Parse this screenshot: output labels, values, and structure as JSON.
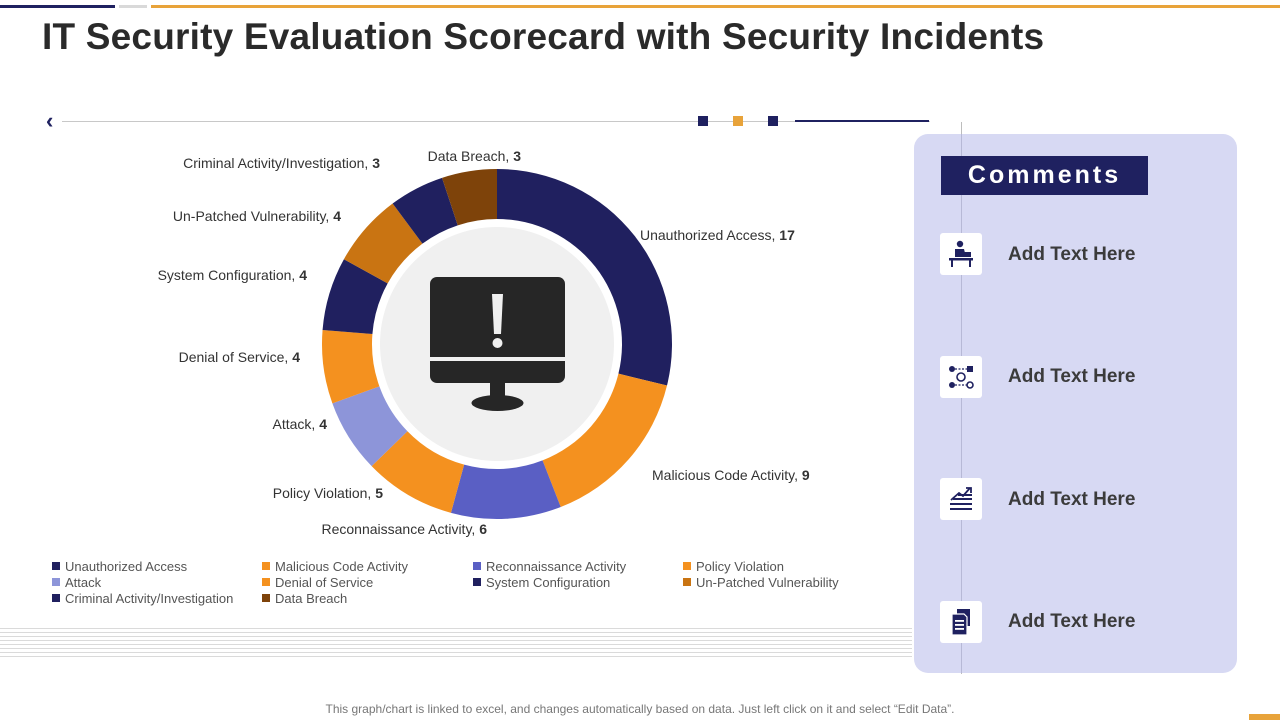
{
  "title": "IT Security Evaluation Scorecard with Security Incidents",
  "comments_panel": {
    "heading": "Comments",
    "items": [
      {
        "icon": "person-at-desk-icon",
        "text": "Add Text Here"
      },
      {
        "icon": "network-diagram-icon",
        "text": "Add Text Here"
      },
      {
        "icon": "bar-chart-growth-icon",
        "text": "Add Text Here"
      },
      {
        "icon": "documents-icon",
        "text": "Add Text Here"
      }
    ]
  },
  "center_icon": "monitor-warning-icon",
  "footnote": "This graph/chart is linked to excel, and changes automatically based on data. Just left click on it and select “Edit Data”.",
  "colors": {
    "accent_navy": "#1f2160",
    "accent_orange": "#e8a33a",
    "panel_bg": "#d7d9f3"
  },
  "chart_data": {
    "type": "pie",
    "donut": true,
    "categories": [
      "Unauthorized Access",
      "Malicious Code Activity",
      "Reconnaissance Activity",
      "Policy Violation",
      "Attack",
      "Denial of Service",
      "System Configuration",
      "Un-Patched Vulnerability",
      "Criminal Activity/Investigation",
      "Data Breach"
    ],
    "values": [
      17,
      9,
      6,
      5,
      4,
      4,
      4,
      4,
      3,
      3
    ],
    "colors": [
      "#20205f",
      "#f4911f",
      "#5a5fc4",
      "#f4911f",
      "#8d95d9",
      "#f4911f",
      "#20205f",
      "#c97412",
      "#20205f",
      "#7e430a"
    ],
    "legend_position": "bottom"
  }
}
